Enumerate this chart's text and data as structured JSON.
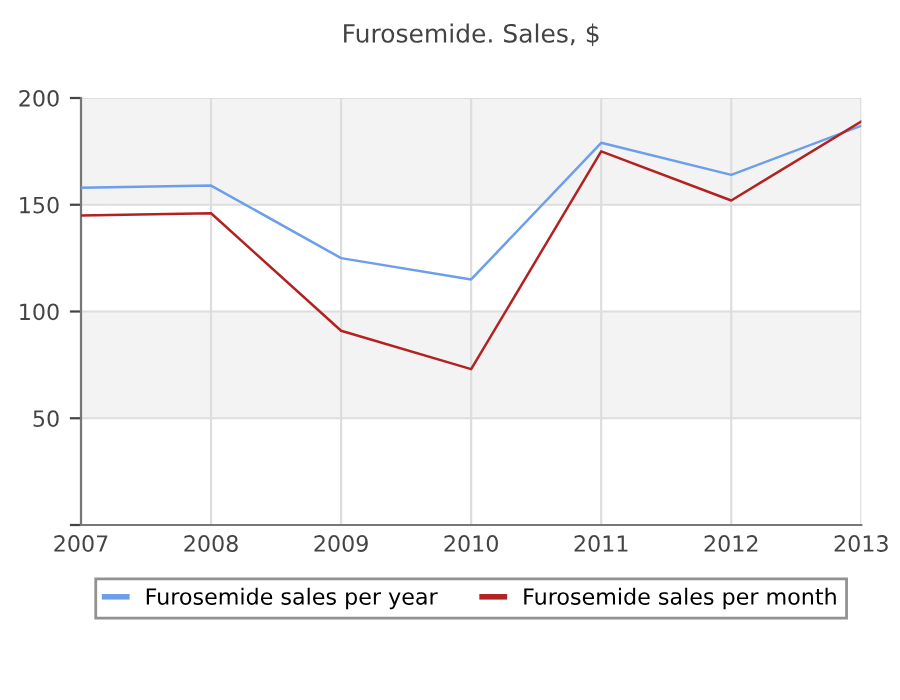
{
  "chart_data": {
    "type": "line",
    "title": "Furosemide. Sales, $",
    "categories": [
      "2007",
      "2008",
      "2009",
      "2010",
      "2011",
      "2012",
      "2013"
    ],
    "series": [
      {
        "name": "Furosemide sales per year",
        "color": "#6d9eeb",
        "values": [
          158,
          159,
          125,
          115,
          179,
          164,
          187
        ]
      },
      {
        "name": "Furosemide sales per month",
        "color": "#b22222",
        "values": [
          145,
          146,
          91,
          73,
          175,
          152,
          189
        ]
      }
    ],
    "ylim": [
      0,
      200
    ],
    "yticks": [
      {
        "value": 0,
        "label": null
      },
      50,
      100,
      150,
      200
    ],
    "bands": [
      {
        "axis": "y",
        "from": 50,
        "to": 100,
        "color": "#f3f3f3"
      },
      {
        "axis": "y",
        "from": 150,
        "to": 200,
        "color": "#f3f3f3"
      }
    ],
    "grid": true,
    "legend": "bottom",
    "marker": "none",
    "line_style": "solid"
  }
}
